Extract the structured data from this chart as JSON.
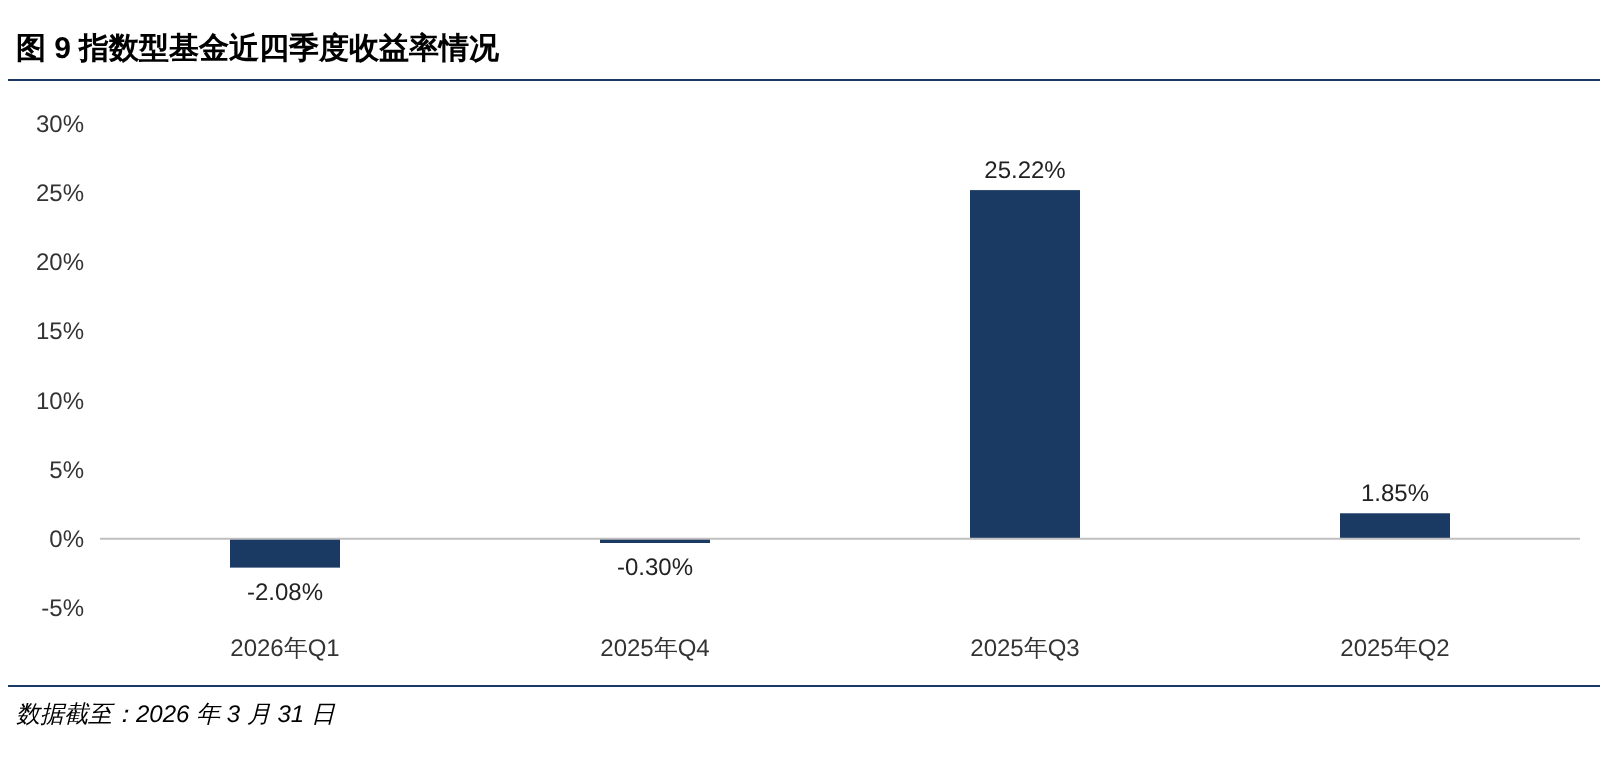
{
  "chart_data": {
    "type": "bar",
    "title": "图 9 指数型基金近四季度收益率情况",
    "categories": [
      "2026年Q1",
      "2025年Q4",
      "2025年Q3",
      "2025年Q2"
    ],
    "values": [
      -2.08,
      -0.3,
      25.22,
      1.85
    ],
    "value_labels": [
      "-2.08%",
      "-0.30%",
      "25.22%",
      "1.85%"
    ],
    "color": "#1b3a63",
    "ylim": [
      -5,
      30
    ],
    "yticks": [
      {
        "value": -5,
        "label": "-5%"
      },
      {
        "value": 0,
        "label": "0%"
      },
      {
        "value": 5,
        "label": "5%"
      },
      {
        "value": 10,
        "label": "10%"
      },
      {
        "value": 15,
        "label": "15%"
      },
      {
        "value": 20,
        "label": "20%"
      },
      {
        "value": 25,
        "label": "25%"
      },
      {
        "value": 30,
        "label": "30%"
      }
    ],
    "annotations": [
      "数据截至：2026 年 3 月 31 日"
    ]
  }
}
